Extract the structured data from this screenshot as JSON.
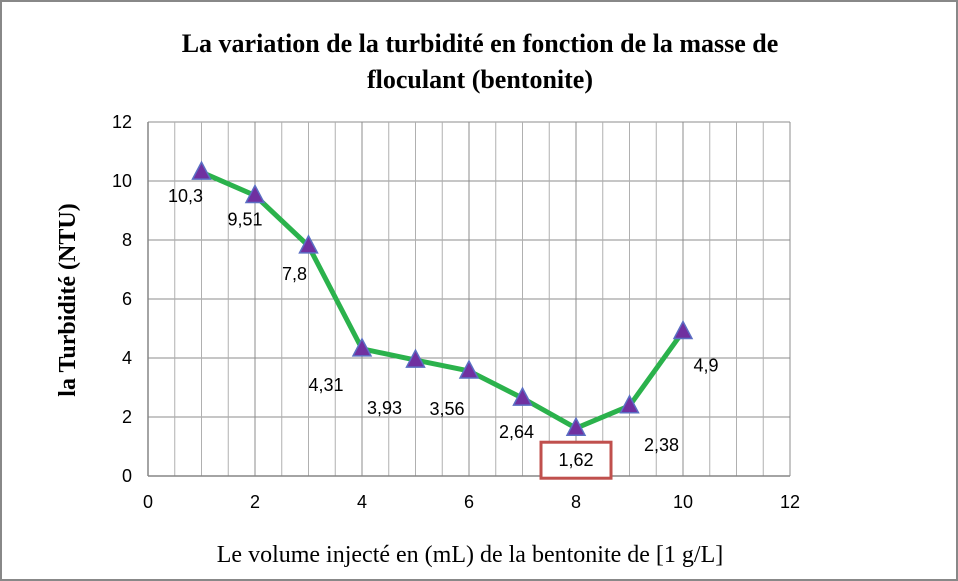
{
  "chart_data": {
    "type": "line",
    "title": [
      "La variation de la turbidité en fonction de la masse de",
      "floculant (bentonite)"
    ],
    "x_label": "Le volume injecté en (mL) de la bentonite de [1 g/L]",
    "y_label": "la Turbidité (NTU)",
    "x": [
      1,
      2,
      3,
      4,
      5,
      6,
      7,
      8,
      9,
      10
    ],
    "series": [
      {
        "name": "Turbidité",
        "color": "#2bb24c",
        "marker_color": "#7030a0",
        "values": [
          10.3,
          9.51,
          7.8,
          4.31,
          3.93,
          3.56,
          2.64,
          1.62,
          2.38,
          4.9
        ],
        "value_labels": [
          "10,3",
          "9,51",
          "7,8",
          "4,31",
          "3,93",
          "3,56",
          "2,64",
          "1,62",
          "2,38",
          "4,9"
        ]
      }
    ],
    "highlight_index": 7,
    "highlight_color": "#c0504d",
    "xlim": [
      0,
      12
    ],
    "xticks": [
      0,
      2,
      4,
      6,
      8,
      10,
      12
    ],
    "ylim": [
      0,
      12
    ],
    "yticks": [
      0,
      2,
      4,
      6,
      8,
      10,
      12
    ],
    "grid": true
  }
}
